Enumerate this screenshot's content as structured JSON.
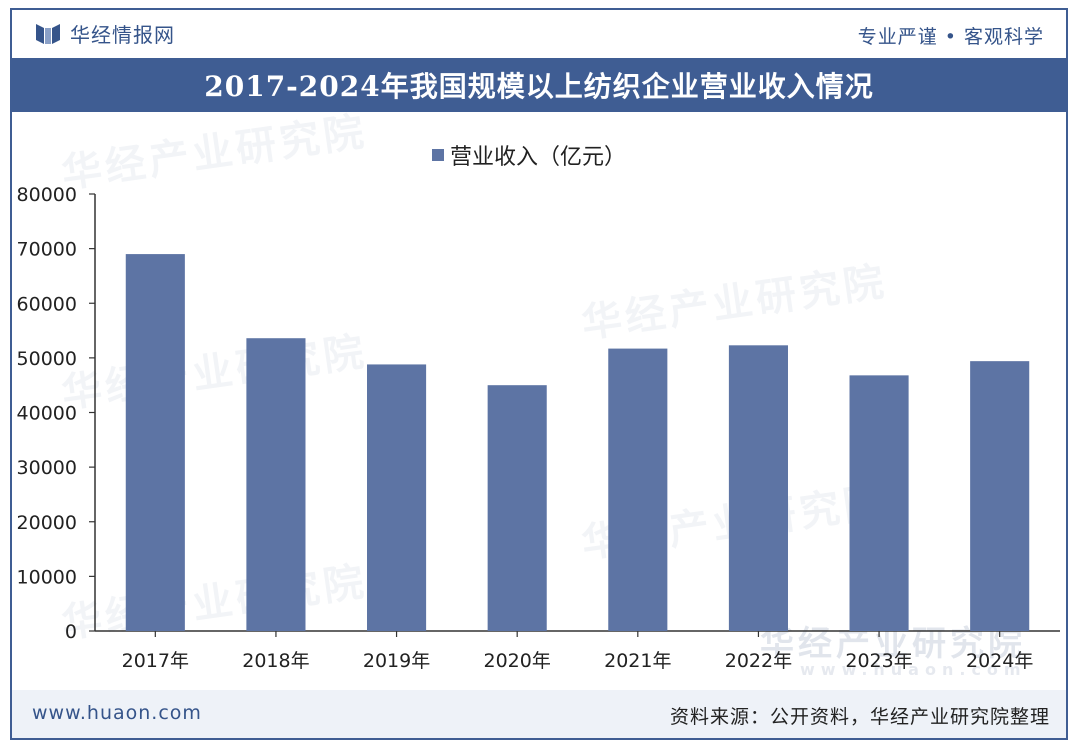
{
  "header": {
    "brand_name": "华经情报网",
    "slogan": "专业严谨 • 客观科学"
  },
  "title": "2017-2024年我国规模以上纺织企业营业收入情况",
  "footer": {
    "website": "www.huaon.com",
    "source": "资料来源：公开资料，华经产业研究院整理"
  },
  "watermark": {
    "text": "华经产业研究院",
    "subtext": "www.huaon.com"
  },
  "colors": {
    "bar": "#5d74a4",
    "band": "#3f5d93",
    "brand": "#35548a"
  },
  "chart_data": {
    "type": "bar",
    "categories": [
      "2017年",
      "2018年",
      "2019年",
      "2020年",
      "2021年",
      "2022年",
      "2023年",
      "2024年"
    ],
    "series": [
      {
        "name": "营业收入（亿元）",
        "values": [
          69000,
          53600,
          48800,
          45000,
          51700,
          52300,
          46800,
          49400
        ]
      }
    ],
    "ylim": [
      0,
      80000
    ],
    "yticks": [
      0,
      10000,
      20000,
      30000,
      40000,
      50000,
      60000,
      70000,
      80000
    ],
    "grid": false,
    "legend_position": "top-center"
  }
}
